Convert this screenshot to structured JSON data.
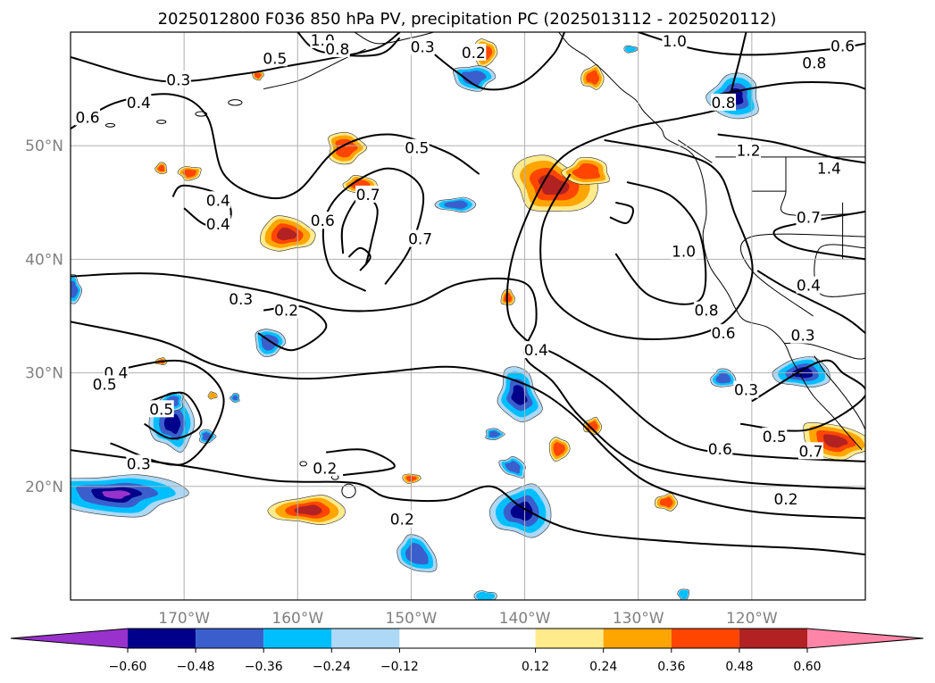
{
  "chart_data": {
    "type": "contour-map",
    "title": "2025012800 F036 850 hPa PV, precipitation PC (2025013112 - 2025020112)",
    "map": {
      "lon_range": [
        -180,
        -110
      ],
      "lat_range": [
        10,
        60
      ],
      "grid": true,
      "lon_ticks": [
        -170,
        -160,
        -150,
        -140,
        -130,
        -120
      ],
      "lon_tick_labels": [
        "170°W",
        "160°W",
        "150°W",
        "140°W",
        "130°W",
        "120°W"
      ],
      "lat_ticks": [
        20,
        30,
        40,
        50
      ],
      "lat_tick_labels": [
        "20°N",
        "30°N",
        "40°N",
        "50°N"
      ]
    },
    "colorbar": {
      "extend": "both",
      "levels": [
        -0.72,
        -0.6,
        -0.48,
        -0.36,
        -0.24,
        -0.12,
        0.12,
        0.24,
        0.36,
        0.48,
        0.6,
        0.72
      ],
      "colors": [
        "#9932cc",
        "#00008b",
        "#3a5fcd",
        "#00bfff",
        "#add8f6",
        "#ffffff",
        "#ffea8c",
        "#ffa500",
        "#ff4500",
        "#b22222",
        "#ff85a8"
      ],
      "tick_values": [
        -0.6,
        -0.48,
        -0.36,
        -0.24,
        -0.12,
        0.12,
        0.24,
        0.36,
        0.48,
        0.6
      ],
      "tick_labels": [
        "−0.60",
        "−0.48",
        "−0.36",
        "−0.24",
        "−0.12",
        "0.12",
        "0.24",
        "0.36",
        "0.48",
        "0.60"
      ]
    },
    "pv_contour_labels": [
      {
        "text": "1.0",
        "lon": -157.8,
        "lat": 59.3
      },
      {
        "text": "0.8",
        "lon": -156.5,
        "lat": 58.5
      },
      {
        "text": "0.5",
        "lon": -162,
        "lat": 57.7
      },
      {
        "text": "0.3",
        "lon": -149,
        "lat": 58.7
      },
      {
        "text": "0.2",
        "lon": -144.5,
        "lat": 58.2
      },
      {
        "text": "1.0",
        "lon": -126.8,
        "lat": 59.2
      },
      {
        "text": "0.6",
        "lon": -112,
        "lat": 58.8
      },
      {
        "text": "0.8",
        "lon": -114.5,
        "lat": 57.3
      },
      {
        "text": "0.8",
        "lon": -122.5,
        "lat": 53.8
      },
      {
        "text": "0.3",
        "lon": -170.5,
        "lat": 55.8
      },
      {
        "text": "0.4",
        "lon": -174,
        "lat": 53.8
      },
      {
        "text": "0.6",
        "lon": -178.5,
        "lat": 52.5
      },
      {
        "text": "0.5",
        "lon": -149.5,
        "lat": 49.8
      },
      {
        "text": "0.7",
        "lon": -153.8,
        "lat": 45.7
      },
      {
        "text": "0.6",
        "lon": -157.8,
        "lat": 43.4
      },
      {
        "text": "0.7",
        "lon": -149.2,
        "lat": 41.8
      },
      {
        "text": "0.4",
        "lon": -167,
        "lat": 45.2
      },
      {
        "text": "0.4",
        "lon": -167,
        "lat": 43.1
      },
      {
        "text": "1.2",
        "lon": -120.3,
        "lat": 49.6
      },
      {
        "text": "1.4",
        "lon": -113.2,
        "lat": 48.0
      },
      {
        "text": "1.0",
        "lon": -126,
        "lat": 40.7
      },
      {
        "text": "0.7",
        "lon": -115,
        "lat": 43.7
      },
      {
        "text": "0.4",
        "lon": -115,
        "lat": 37.7
      },
      {
        "text": "0.8",
        "lon": -124,
        "lat": 35.5
      },
      {
        "text": "0.6",
        "lon": -122.5,
        "lat": 33.5
      },
      {
        "text": "0.3",
        "lon": -165,
        "lat": 36.5
      },
      {
        "text": "0.2",
        "lon": -161,
        "lat": 35.5
      },
      {
        "text": "0.4",
        "lon": -139,
        "lat": 32.0
      },
      {
        "text": "0.3",
        "lon": -115.5,
        "lat": 33.3
      },
      {
        "text": "0.4",
        "lon": -176,
        "lat": 30.0
      },
      {
        "text": "0.5",
        "lon": -177,
        "lat": 29.0
      },
      {
        "text": "0.5",
        "lon": -172,
        "lat": 26.8
      },
      {
        "text": "0.3",
        "lon": -120.5,
        "lat": 28.5
      },
      {
        "text": "0.5",
        "lon": -118,
        "lat": 24.4
      },
      {
        "text": "0.6",
        "lon": -122.8,
        "lat": 23.3
      },
      {
        "text": "0.7",
        "lon": -114.8,
        "lat": 23.1
      },
      {
        "text": "0.3",
        "lon": -174,
        "lat": 22.0
      },
      {
        "text": "0.2",
        "lon": -157.6,
        "lat": 21.6
      },
      {
        "text": "0.2",
        "lon": -150.8,
        "lat": 17.1
      },
      {
        "text": "0.2",
        "lon": -117,
        "lat": 18.9
      }
    ]
  }
}
